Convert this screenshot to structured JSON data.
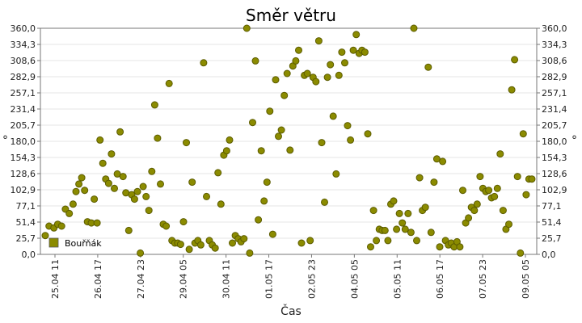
{
  "chart_data": {
    "type": "scatter",
    "title": "Směr větru",
    "xlabel": "Čas",
    "ylabel": "°",
    "ylim": [
      0,
      360
    ],
    "y_ticks": [
      "0,0",
      "25,7",
      "51,4",
      "77,1",
      "102,9",
      "128,6",
      "154,3",
      "180,0",
      "205,7",
      "231,4",
      "257,1",
      "282,9",
      "308,6",
      "334,3",
      "360,0"
    ],
    "x_ticks": [
      "25.04 11",
      "26.04 17",
      "27.04 23",
      "29.04 05",
      "30.04 11",
      "01.05 17",
      "02.05 23",
      "04.05 05",
      "05.05 11",
      "06.05 17",
      "07.05 23",
      "09.05 05"
    ],
    "grid": true,
    "legend_position": "bottom-left",
    "marker_color": "#8b8b00",
    "series": [
      {
        "name": "Bouřňák",
        "points": [
          [
            0.1,
            30
          ],
          [
            0.5,
            45
          ],
          [
            1.0,
            42
          ],
          [
            1.4,
            48
          ],
          [
            1.8,
            45
          ],
          [
            2.2,
            72
          ],
          [
            2.6,
            65
          ],
          [
            3.0,
            80
          ],
          [
            3.3,
            100
          ],
          [
            3.6,
            112
          ],
          [
            3.9,
            122
          ],
          [
            4.2,
            102
          ],
          [
            4.5,
            52
          ],
          [
            4.9,
            50
          ],
          [
            5.2,
            88
          ],
          [
            5.5,
            50
          ],
          [
            5.8,
            182
          ],
          [
            6.1,
            145
          ],
          [
            6.4,
            120
          ],
          [
            6.7,
            113
          ],
          [
            7.0,
            160
          ],
          [
            7.3,
            105
          ],
          [
            7.6,
            128
          ],
          [
            7.9,
            195
          ],
          [
            8.2,
            124
          ],
          [
            8.5,
            98
          ],
          [
            8.8,
            38
          ],
          [
            9.1,
            95
          ],
          [
            9.4,
            88
          ],
          [
            9.7,
            100
          ],
          [
            10.0,
            2
          ],
          [
            10.3,
            108
          ],
          [
            10.6,
            92
          ],
          [
            10.9,
            70
          ],
          [
            11.2,
            132
          ],
          [
            11.5,
            238
          ],
          [
            11.8,
            185
          ],
          [
            12.1,
            112
          ],
          [
            12.4,
            48
          ],
          [
            12.7,
            45
          ],
          [
            13.0,
            272
          ],
          [
            13.3,
            22
          ],
          [
            13.6,
            18
          ],
          [
            13.9,
            18
          ],
          [
            14.2,
            16
          ],
          [
            14.5,
            52
          ],
          [
            14.8,
            178
          ],
          [
            15.1,
            8
          ],
          [
            15.4,
            115
          ],
          [
            15.7,
            18
          ],
          [
            16.0,
            22
          ],
          [
            16.3,
            15
          ],
          [
            16.6,
            305
          ],
          [
            16.9,
            92
          ],
          [
            17.2,
            22
          ],
          [
            17.5,
            15
          ],
          [
            17.8,
            10
          ],
          [
            18.1,
            130
          ],
          [
            18.4,
            80
          ],
          [
            18.7,
            158
          ],
          [
            19.0,
            165
          ],
          [
            19.3,
            182
          ],
          [
            19.6,
            18
          ],
          [
            19.9,
            30
          ],
          [
            20.2,
            25
          ],
          [
            20.5,
            20
          ],
          [
            20.8,
            25
          ],
          [
            21.1,
            360
          ],
          [
            21.4,
            2
          ],
          [
            21.7,
            210
          ],
          [
            22.0,
            308
          ],
          [
            22.3,
            55
          ],
          [
            22.6,
            165
          ],
          [
            22.9,
            85
          ],
          [
            23.2,
            115
          ],
          [
            23.5,
            228
          ],
          [
            23.8,
            32
          ],
          [
            24.1,
            278
          ],
          [
            24.4,
            188
          ],
          [
            24.7,
            198
          ],
          [
            25.0,
            253
          ],
          [
            25.3,
            288
          ],
          [
            25.6,
            166
          ],
          [
            25.9,
            300
          ],
          [
            26.2,
            308
          ],
          [
            26.5,
            325
          ],
          [
            26.8,
            18
          ],
          [
            27.1,
            285
          ],
          [
            27.4,
            288
          ],
          [
            27.7,
            22
          ],
          [
            28.0,
            282
          ],
          [
            28.3,
            275
          ],
          [
            28.6,
            340
          ],
          [
            28.9,
            178
          ],
          [
            29.2,
            83
          ],
          [
            29.5,
            282
          ],
          [
            29.8,
            302
          ],
          [
            30.1,
            220
          ],
          [
            30.4,
            128
          ],
          [
            30.7,
            285
          ],
          [
            31.0,
            322
          ],
          [
            31.3,
            305
          ],
          [
            31.6,
            205
          ],
          [
            31.9,
            182
          ],
          [
            32.2,
            325
          ],
          [
            32.5,
            350
          ],
          [
            32.8,
            320
          ],
          [
            33.1,
            325
          ],
          [
            33.4,
            322
          ],
          [
            33.7,
            192
          ],
          [
            34.0,
            12
          ],
          [
            34.3,
            70
          ],
          [
            34.6,
            22
          ],
          [
            34.9,
            40
          ],
          [
            35.2,
            38
          ],
          [
            35.5,
            38
          ],
          [
            35.8,
            22
          ],
          [
            36.1,
            80
          ],
          [
            36.4,
            85
          ],
          [
            36.7,
            40
          ],
          [
            37.0,
            65
          ],
          [
            37.3,
            50
          ],
          [
            37.6,
            40
          ],
          [
            37.9,
            65
          ],
          [
            38.2,
            35
          ],
          [
            38.5,
            360
          ],
          [
            38.8,
            22
          ],
          [
            39.1,
            122
          ],
          [
            39.4,
            70
          ],
          [
            39.7,
            75
          ],
          [
            40.0,
            298
          ],
          [
            40.3,
            35
          ],
          [
            40.6,
            115
          ],
          [
            40.9,
            152
          ],
          [
            41.2,
            12
          ],
          [
            41.5,
            148
          ],
          [
            41.8,
            22
          ],
          [
            42.1,
            15
          ],
          [
            42.4,
            18
          ],
          [
            42.7,
            12
          ],
          [
            43.0,
            20
          ],
          [
            43.3,
            12
          ],
          [
            43.6,
            102
          ],
          [
            43.9,
            50
          ],
          [
            44.2,
            58
          ],
          [
            44.5,
            75
          ],
          [
            44.8,
            70
          ],
          [
            45.1,
            80
          ],
          [
            45.4,
            124
          ],
          [
            45.7,
            105
          ],
          [
            46.0,
            100
          ],
          [
            46.3,
            102
          ],
          [
            46.6,
            90
          ],
          [
            46.9,
            92
          ],
          [
            47.2,
            105
          ],
          [
            47.5,
            160
          ],
          [
            47.8,
            70
          ],
          [
            48.1,
            40
          ],
          [
            48.4,
            48
          ],
          [
            48.7,
            262
          ],
          [
            49.0,
            310
          ],
          [
            49.3,
            124
          ],
          [
            49.6,
            2
          ],
          [
            49.9,
            192
          ],
          [
            50.2,
            95
          ],
          [
            50.5,
            120
          ],
          [
            50.8,
            120
          ]
        ]
      }
    ]
  }
}
